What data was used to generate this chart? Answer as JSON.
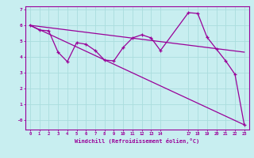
{
  "background_color": "#c8eef0",
  "line_color": "#990099",
  "grid_color": "#aadddd",
  "xlabel": "Windchill (Refroidissement éolien,°C)",
  "xlim": [
    -0.5,
    23.5
  ],
  "ylim": [
    -0.6,
    7.2
  ],
  "yticks": [
    0,
    1,
    2,
    3,
    4,
    5,
    6,
    7
  ],
  "ytick_labels": [
    "-0",
    "1",
    "2",
    "3",
    "4",
    "5",
    "6",
    "7"
  ],
  "xticks": [
    0,
    1,
    2,
    3,
    4,
    5,
    6,
    7,
    8,
    9,
    10,
    11,
    12,
    13,
    14,
    17,
    18,
    19,
    20,
    21,
    22,
    23
  ],
  "line1": {
    "x": [
      0,
      1,
      2,
      3,
      4,
      5,
      6,
      7,
      8,
      9,
      10,
      11,
      12,
      13,
      14,
      17,
      18,
      19,
      20,
      21,
      22,
      23
    ],
    "y": [
      6.0,
      5.7,
      5.65,
      4.3,
      3.7,
      4.9,
      4.8,
      4.4,
      3.8,
      3.75,
      4.6,
      5.2,
      5.4,
      5.2,
      4.4,
      6.8,
      6.75,
      5.25,
      4.5,
      3.75,
      2.9,
      -0.3
    ]
  },
  "line2": {
    "x": [
      0,
      23
    ],
    "y": [
      6.0,
      4.3
    ]
  },
  "line3": {
    "x": [
      0,
      23
    ],
    "y": [
      6.0,
      -0.3
    ]
  },
  "figsize": [
    3.2,
    2.0
  ],
  "dpi": 100
}
